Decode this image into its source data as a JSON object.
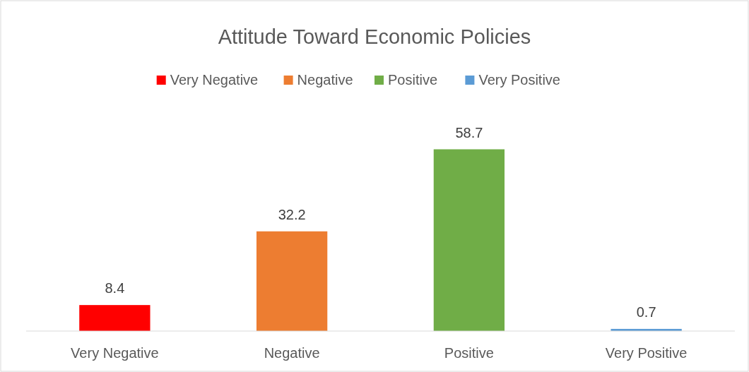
{
  "chart_data": {
    "type": "bar",
    "title": "Attitude Toward Economic Policies",
    "categories": [
      "Very Negative",
      "Negative",
      "Positive",
      "Very Positive"
    ],
    "series": [
      {
        "name": "Very Negative",
        "color": "#ff0000",
        "values": [
          8.4,
          null,
          null,
          null
        ]
      },
      {
        "name": "Negative",
        "color": "#ed7d31",
        "values": [
          null,
          32.2,
          null,
          null
        ]
      },
      {
        "name": "Positive",
        "color": "#70ad47",
        "values": [
          null,
          null,
          58.7,
          null
        ]
      },
      {
        "name": "Very Positive",
        "color": "#5b9bd5",
        "values": [
          null,
          null,
          null,
          0.7
        ]
      }
    ],
    "data_labels": true,
    "legend": "top"
  }
}
